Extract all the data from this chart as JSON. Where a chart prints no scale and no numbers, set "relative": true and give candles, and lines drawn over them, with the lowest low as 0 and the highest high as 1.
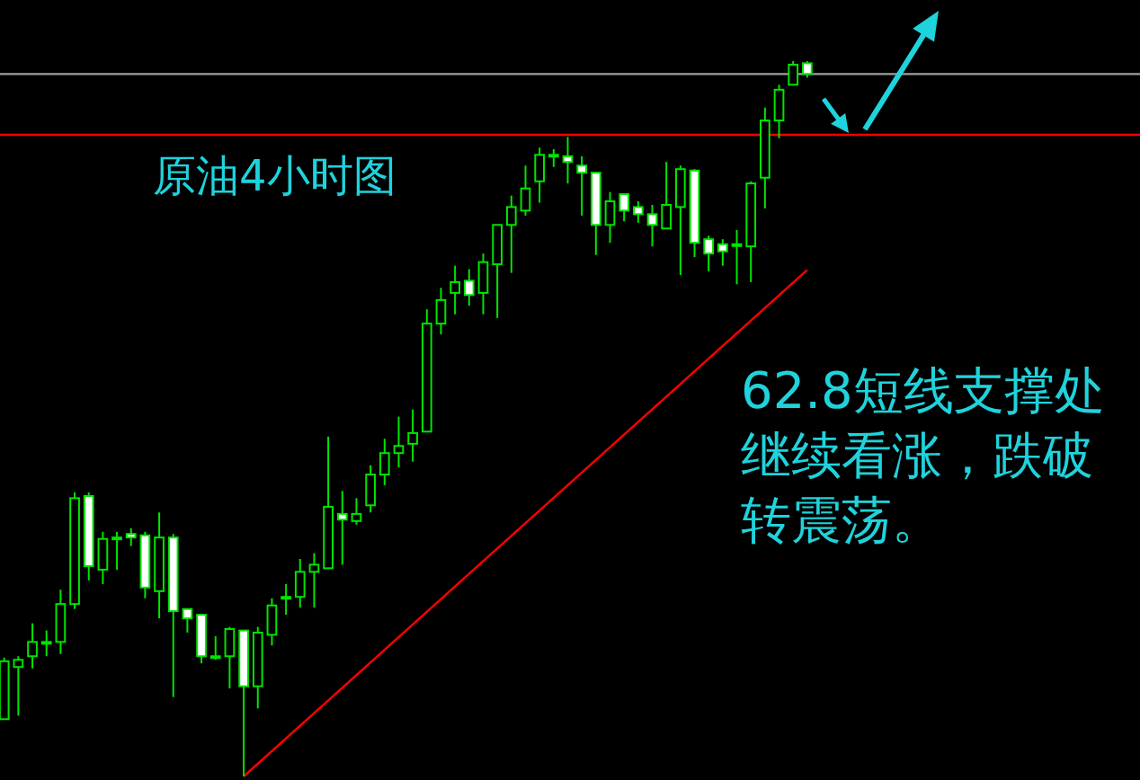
{
  "chart_data": {
    "type": "candlestick",
    "title": "原油4小时图",
    "annotations": [
      "62.8短线支撑处继续看涨，跌破转震荡。"
    ],
    "relative": true,
    "color": "#00e400",
    "categories": [
      null,
      null,
      null,
      null,
      null,
      null,
      null,
      null,
      null,
      null,
      null,
      null,
      null,
      null,
      null,
      null,
      null,
      null,
      null,
      null,
      null,
      null,
      null,
      null,
      null,
      null,
      null,
      null,
      null,
      null,
      null,
      null,
      null,
      null,
      null,
      null,
      null,
      null,
      null,
      null,
      null,
      null,
      null,
      null,
      null,
      null,
      null,
      null,
      null,
      null,
      null,
      null,
      null,
      null,
      null,
      null,
      null,
      null
    ],
    "ohlc": [
      [
        0.08,
        0.166,
        0.08,
        0.161
      ],
      [
        0.153,
        0.168,
        0.085,
        0.163
      ],
      [
        0.168,
        0.214,
        0.151,
        0.188
      ],
      [
        0.188,
        0.204,
        0.168,
        0.188
      ],
      [
        0.188,
        0.261,
        0.171,
        0.241
      ],
      [
        0.241,
        0.397,
        0.234,
        0.389
      ],
      [
        0.392,
        0.397,
        0.274,
        0.294
      ],
      [
        0.289,
        0.342,
        0.269,
        0.332
      ],
      [
        0.334,
        0.342,
        0.289,
        0.334
      ],
      [
        0.339,
        0.347,
        0.322,
        0.334
      ],
      [
        0.337,
        0.342,
        0.249,
        0.264
      ],
      [
        0.259,
        0.369,
        0.221,
        0.334
      ],
      [
        0.334,
        0.339,
        0.111,
        0.231
      ],
      [
        0.234,
        0.234,
        0.201,
        0.221
      ],
      [
        0.226,
        0.226,
        0.158,
        0.168
      ],
      [
        0.168,
        0.196,
        0.163,
        0.168
      ],
      [
        0.168,
        0.209,
        0.123,
        0.206
      ],
      [
        0.204,
        0.204,
        0,
        0.126
      ],
      [
        0.126,
        0.209,
        0.095,
        0.201
      ],
      [
        0.198,
        0.249,
        0.183,
        0.239
      ],
      [
        0.251,
        0.269,
        0.226,
        0.251
      ],
      [
        0.251,
        0.304,
        0.236,
        0.286
      ],
      [
        0.286,
        0.312,
        0.236,
        0.296
      ],
      [
        0.291,
        0.475,
        0.291,
        0.377
      ],
      [
        0.367,
        0.399,
        0.296,
        0.359
      ],
      [
        0.357,
        0.389,
        0.352,
        0.367
      ],
      [
        0.379,
        0.435,
        0.369,
        0.422
      ],
      [
        0.422,
        0.472,
        0.407,
        0.452
      ],
      [
        0.452,
        0.503,
        0.432,
        0.462
      ],
      [
        0.465,
        0.513,
        0.44,
        0.48
      ],
      [
        0.482,
        0.653,
        0.482,
        0.633
      ],
      [
        0.633,
        0.683,
        0.618,
        0.666
      ],
      [
        0.676,
        0.714,
        0.646,
        0.691
      ],
      [
        0.693,
        0.709,
        0.658,
        0.673
      ],
      [
        0.676,
        0.731,
        0.646,
        0.719
      ],
      [
        0.716,
        0.771,
        0.641,
        0.771
      ],
      [
        0.771,
        0.812,
        0.704,
        0.796
      ],
      [
        0.791,
        0.854,
        0.784,
        0.822
      ],
      [
        0.832,
        0.879,
        0.802,
        0.869
      ],
      [
        0.869,
        0.877,
        0.852,
        0.869
      ],
      [
        0.867,
        0.894,
        0.829,
        0.859
      ],
      [
        0.854,
        0.867,
        0.784,
        0.844
      ],
      [
        0.844,
        0.844,
        0.729,
        0.771
      ],
      [
        0.771,
        0.817,
        0.746,
        0.804
      ],
      [
        0.814,
        0.814,
        0.776,
        0.791
      ],
      [
        0.796,
        0.804,
        0.774,
        0.786
      ],
      [
        0.786,
        0.799,
        0.741,
        0.771
      ],
      [
        0.766,
        0.859,
        0.766,
        0.799
      ],
      [
        0.796,
        0.854,
        0.701,
        0.849
      ],
      [
        0.847,
        0.849,
        0.726,
        0.746
      ],
      [
        0.751,
        0.756,
        0.706,
        0.731
      ],
      [
        0.744,
        0.751,
        0.714,
        0.734
      ],
      [
        0.744,
        0.764,
        0.688,
        0.744
      ],
      [
        0.741,
        0.832,
        0.691,
        0.829
      ],
      [
        0.837,
        0.935,
        0.794,
        0.917
      ],
      [
        0.917,
        0.967,
        0.892,
        0.96
      ],
      [
        0.967,
        1,
        0.967,
        0.995
      ],
      [
        0.997,
        1,
        0.977,
        0.982
      ]
    ],
    "series": [
      {
        "type": "line",
        "values": [
          null,
          null,
          null,
          null,
          null,
          null,
          null,
          null,
          null,
          null,
          null,
          null,
          null,
          null,
          null,
          null,
          null,
          0,
          null,
          null,
          null,
          null,
          null,
          null,
          null,
          null,
          null,
          null,
          null,
          null,
          null,
          null,
          null,
          null,
          null,
          null,
          null,
          null,
          null,
          null,
          null,
          null,
          null,
          null,
          null,
          null,
          null,
          null,
          null,
          null,
          null,
          null,
          null,
          null,
          null,
          null,
          null,
          0.708
        ],
        "color": "#ff0000"
      }
    ],
    "ref_lines": [
      {
        "axis": "y",
        "value": 0.982,
        "color": "#a0a0a0"
      },
      {
        "axis": "y",
        "value": 0.897,
        "color": "#ff0000"
      }
    ]
  }
}
